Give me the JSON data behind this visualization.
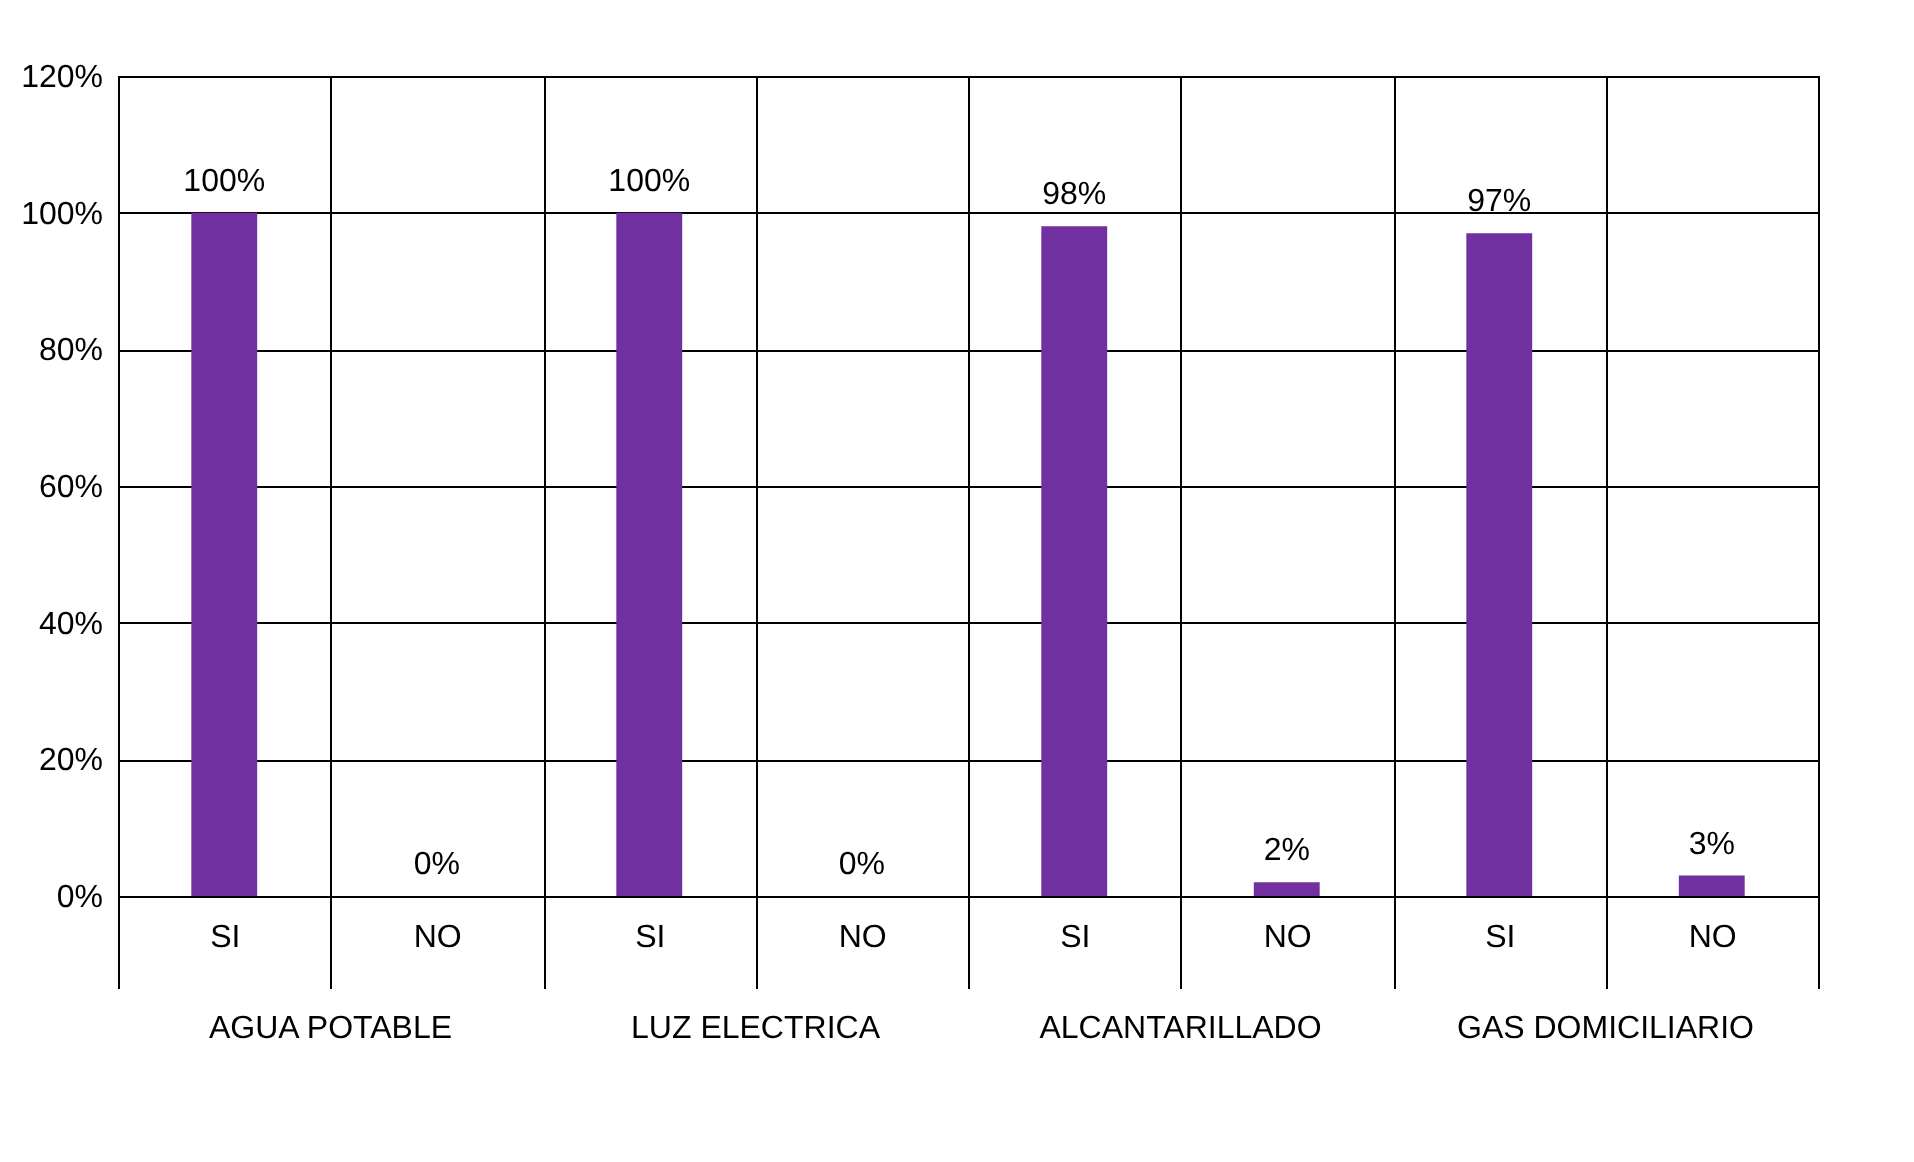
{
  "chart_data": {
    "type": "bar",
    "categories": [
      "SI",
      "NO",
      "SI",
      "NO",
      "SI",
      "NO",
      "SI",
      "NO"
    ],
    "values": [
      100,
      0,
      100,
      0,
      98,
      2,
      97,
      3
    ],
    "value_labels": [
      "100%",
      "0%",
      "100%",
      "0%",
      "98%",
      "2%",
      "97%",
      "3%"
    ],
    "color": "#7030a0",
    "ylim": [
      0,
      120
    ],
    "yticks": [
      {
        "value": 0,
        "label": "0%"
      },
      {
        "value": 20,
        "label": "20%"
      },
      {
        "value": 40,
        "label": "40%"
      },
      {
        "value": 60,
        "label": "60%"
      },
      {
        "value": 80,
        "label": "80%"
      },
      {
        "value": 100,
        "label": "100%"
      },
      {
        "value": 120,
        "label": "120%"
      }
    ],
    "grid": true,
    "annotations": [
      "AGUA POTABLE",
      "LUZ ELECTRICA",
      "ALCANTARILLADO",
      "GAS DOMICILIARIO"
    ]
  }
}
